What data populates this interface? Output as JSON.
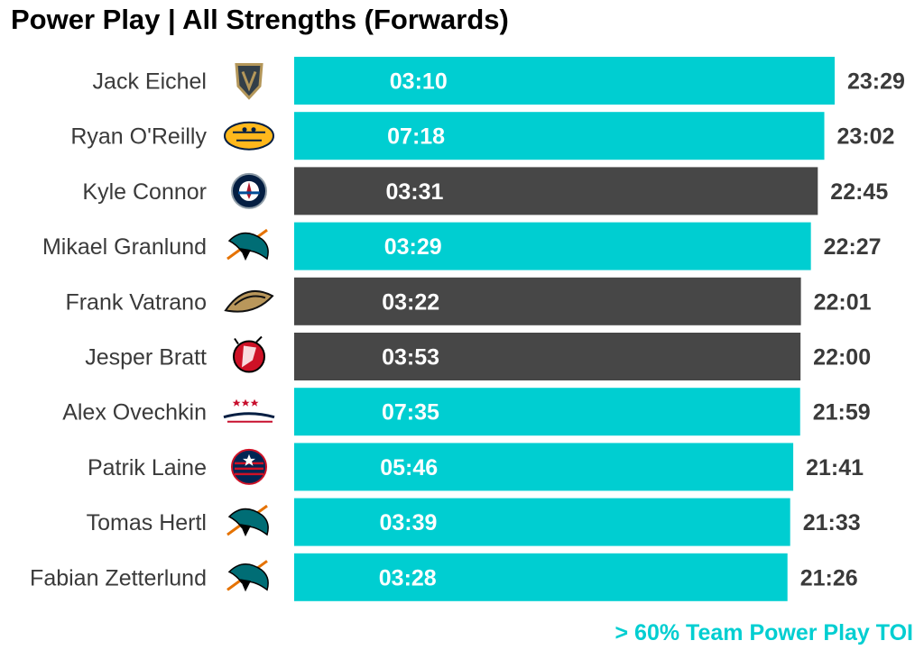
{
  "chart_data": {
    "type": "bar",
    "orientation": "horizontal",
    "title": "Power Play | All Strengths (Forwards)",
    "players": [
      {
        "name": "Jack Eichel",
        "team_logo": "vegas-golden-knights-logo",
        "total_toi": "23:29",
        "total_minutes": 23.483,
        "pp_toi": "03:10",
        "highlight": true
      },
      {
        "name": "Ryan O'Reilly",
        "team_logo": "nashville-predators-logo",
        "total_toi": "23:02",
        "total_minutes": 23.033,
        "pp_toi": "07:18",
        "highlight": true
      },
      {
        "name": "Kyle Connor",
        "team_logo": "winnipeg-jets-logo",
        "total_toi": "22:45",
        "total_minutes": 22.75,
        "pp_toi": "03:31",
        "highlight": false
      },
      {
        "name": "Mikael Granlund",
        "team_logo": "san-jose-sharks-logo",
        "total_toi": "22:27",
        "total_minutes": 22.45,
        "pp_toi": "03:29",
        "highlight": true
      },
      {
        "name": "Frank Vatrano",
        "team_logo": "anaheim-ducks-logo",
        "total_toi": "22:01",
        "total_minutes": 22.017,
        "pp_toi": "03:22",
        "highlight": false
      },
      {
        "name": "Jesper Bratt",
        "team_logo": "new-jersey-devils-logo",
        "total_toi": "22:00",
        "total_minutes": 22.0,
        "pp_toi": "03:53",
        "highlight": false
      },
      {
        "name": "Alex Ovechkin",
        "team_logo": "washington-capitals-logo",
        "total_toi": "21:59",
        "total_minutes": 21.983,
        "pp_toi": "07:35",
        "highlight": true
      },
      {
        "name": "Patrik Laine",
        "team_logo": "columbus-blue-jackets-logo",
        "total_toi": "21:41",
        "total_minutes": 21.683,
        "pp_toi": "05:46",
        "highlight": true
      },
      {
        "name": "Tomas Hertl",
        "team_logo": "san-jose-sharks-logo",
        "total_toi": "21:33",
        "total_minutes": 21.55,
        "pp_toi": "03:39",
        "highlight": true
      },
      {
        "name": "Fabian Zetterlund",
        "team_logo": "san-jose-sharks-logo",
        "total_toi": "21:26",
        "total_minutes": 21.433,
        "pp_toi": "03:28",
        "highlight": true
      }
    ],
    "legend_note": "> 60% Team Power Play TOI",
    "colors": {
      "highlight": "#00CED1",
      "default": "#474747",
      "name_text": "#3a3a3a",
      "value_text": "#3a3a3a",
      "bar_label": "#ffffff"
    }
  }
}
